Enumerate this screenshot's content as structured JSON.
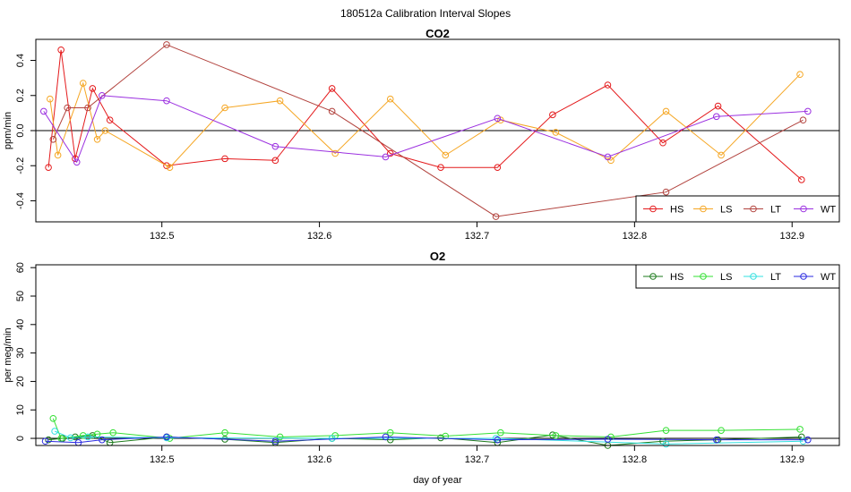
{
  "figure_title": "180512a   Calibration Interval Slopes",
  "chart_data": [
    {
      "type": "line",
      "title": "CO2",
      "xlabel": "",
      "ylabel": "ppm/min",
      "xlim": [
        132.42,
        132.93
      ],
      "ylim": [
        -0.52,
        0.52
      ],
      "x_ticks": [
        132.5,
        132.6,
        132.7,
        132.8,
        132.9
      ],
      "x_tick_labels": [
        "132.5",
        "132.6",
        "132.7",
        "132.8",
        "132.9"
      ],
      "y_ticks": [
        -0.4,
        -0.2,
        0.0,
        0.2,
        0.4
      ],
      "y_tick_labels": [
        "-0.4",
        "-0.2",
        "0.0",
        "0.2",
        "0.4"
      ],
      "reference_line": 0,
      "legend_position": "bottom-right",
      "series": [
        {
          "name": "HS",
          "color": "#E41A1C",
          "x": [
            132.428,
            132.436,
            132.445,
            132.456,
            132.467,
            132.503,
            132.54,
            132.572,
            132.608,
            132.645,
            132.677,
            132.713,
            132.748,
            132.783,
            132.818,
            132.853,
            132.906
          ],
          "y": [
            -0.21,
            0.46,
            -0.16,
            0.24,
            0.06,
            -0.2,
            -0.16,
            -0.17,
            0.24,
            -0.13,
            -0.21,
            -0.21,
            0.09,
            0.26,
            -0.07,
            0.14,
            -0.28
          ]
        },
        {
          "name": "LS",
          "color": "#F5A623",
          "x": [
            132.429,
            132.434,
            132.45,
            132.459,
            132.464,
            132.505,
            132.54,
            132.575,
            132.61,
            132.645,
            132.68,
            132.715,
            132.75,
            132.785,
            132.82,
            132.855,
            132.905
          ],
          "y": [
            0.18,
            -0.14,
            0.27,
            -0.05,
            0.0,
            -0.21,
            0.13,
            0.17,
            -0.13,
            0.18,
            -0.14,
            0.06,
            -0.01,
            -0.17,
            0.11,
            -0.14,
            0.32
          ]
        },
        {
          "name": "LT",
          "color": "#B2433E",
          "x": [
            132.431,
            132.44,
            132.453,
            132.503,
            132.608,
            132.712,
            132.82,
            132.907
          ],
          "y": [
            -0.05,
            0.13,
            0.13,
            0.49,
            0.11,
            -0.49,
            -0.35,
            0.06
          ]
        },
        {
          "name": "WT",
          "color": "#9B30E0",
          "x": [
            132.425,
            132.446,
            132.462,
            132.503,
            132.572,
            132.642,
            132.713,
            132.783,
            132.852,
            132.91
          ],
          "y": [
            0.11,
            -0.18,
            0.2,
            0.17,
            -0.09,
            -0.15,
            0.07,
            -0.15,
            0.08,
            0.11
          ]
        }
      ]
    },
    {
      "type": "line",
      "title": "O2",
      "xlabel": "day of year",
      "ylabel": "per meg/min",
      "xlim": [
        132.42,
        132.93
      ],
      "ylim": [
        -2.5,
        61
      ],
      "x_ticks": [
        132.5,
        132.6,
        132.7,
        132.8,
        132.9
      ],
      "x_tick_labels": [
        "132.5",
        "132.6",
        "132.7",
        "132.8",
        "132.9"
      ],
      "y_ticks": [
        0,
        10,
        20,
        30,
        40,
        50,
        60
      ],
      "y_tick_labels": [
        "0",
        "10",
        "20",
        "30",
        "40",
        "50",
        "60"
      ],
      "reference_line": 0,
      "legend_position": "top-right",
      "series": [
        {
          "name": "HS",
          "color": "#1B7A1B",
          "x": [
            132.428,
            132.437,
            132.445,
            132.456,
            132.467,
            132.503,
            132.54,
            132.572,
            132.608,
            132.645,
            132.677,
            132.713,
            132.748,
            132.783,
            132.818,
            132.853,
            132.906
          ],
          "y": [
            -0.5,
            0.0,
            0.5,
            1.0,
            -1.5,
            0.5,
            -0.3,
            -1.5,
            0.0,
            -0.5,
            0.2,
            -1.5,
            1.2,
            -2.5,
            -1.0,
            -0.5,
            0.5
          ]
        },
        {
          "name": "LS",
          "color": "#33E033",
          "x": [
            132.431,
            132.436,
            132.45,
            132.459,
            132.469,
            132.505,
            132.54,
            132.575,
            132.61,
            132.645,
            132.68,
            132.715,
            132.75,
            132.785,
            132.82,
            132.855,
            132.905
          ],
          "y": [
            7.0,
            0.0,
            1.0,
            1.5,
            2.0,
            0.0,
            2.0,
            0.5,
            1.0,
            2.0,
            0.8,
            2.0,
            1.0,
            0.5,
            2.8,
            2.8,
            3.2
          ]
        },
        {
          "name": "LT",
          "color": "#33E0E0",
          "x": [
            132.432,
            132.442,
            132.453,
            132.503,
            132.608,
            132.712,
            132.82,
            132.907
          ],
          "y": [
            2.5,
            0.2,
            0.5,
            0.2,
            0.0,
            0.0,
            -2.0,
            -1.0
          ]
        },
        {
          "name": "WT",
          "color": "#2A2AE0",
          "x": [
            132.426,
            132.447,
            132.462,
            132.503,
            132.572,
            132.642,
            132.713,
            132.783,
            132.852,
            132.91
          ],
          "y": [
            -1.0,
            -1.5,
            -0.5,
            0.5,
            -1.0,
            0.5,
            -0.5,
            -0.3,
            -0.5,
            -0.5
          ]
        }
      ]
    }
  ]
}
